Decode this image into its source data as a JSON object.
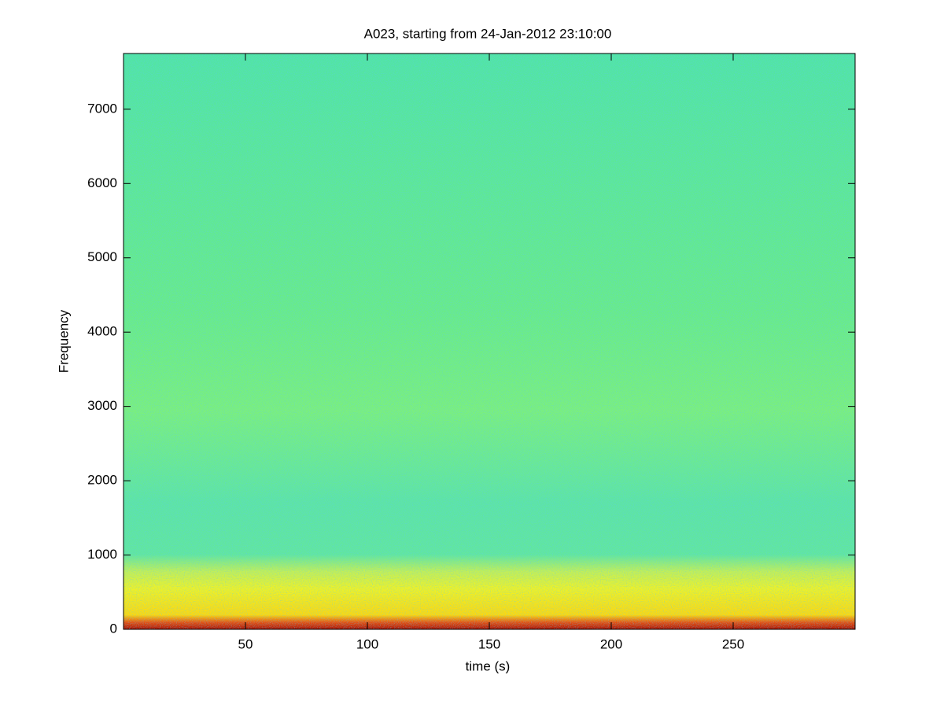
{
  "chart_data": {
    "type": "spectrogram",
    "title": "A023, starting from 24-Jan-2012 23:10:00",
    "xlabel": "time (s)",
    "ylabel": "Frequency",
    "xlim": [
      0,
      300
    ],
    "ylim": [
      0,
      7750
    ],
    "xticks": [
      50,
      100,
      150,
      200,
      250
    ],
    "yticks": [
      0,
      1000,
      2000,
      3000,
      4000,
      5000,
      6000,
      7000
    ]
  }
}
